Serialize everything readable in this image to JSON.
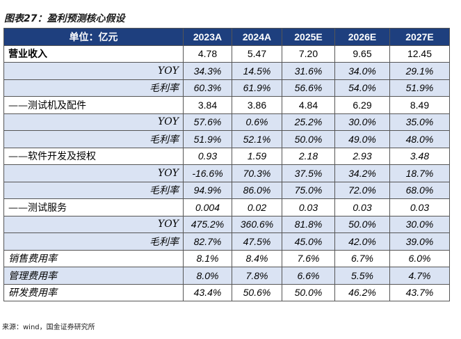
{
  "title": "图表27：盈利预测核心假设",
  "table": {
    "header": [
      "单位：亿元",
      "2023A",
      "2024A",
      "2025E",
      "2026E",
      "2027E"
    ],
    "rows": [
      [
        "营业收入",
        "4.78",
        "5.47",
        "7.20",
        "9.65",
        "12.45"
      ],
      [
        "YOY",
        "34.3%",
        "14.5%",
        "31.6%",
        "34.0%",
        "29.1%"
      ],
      [
        "毛利率",
        "60.3%",
        "61.9%",
        "56.6%",
        "54.0%",
        "51.9%"
      ],
      [
        "——测试机及配件",
        "3.84",
        "3.86",
        "4.84",
        "6.29",
        "8.49"
      ],
      [
        "YOY",
        "57.6%",
        "0.6%",
        "25.2%",
        "30.0%",
        "35.0%"
      ],
      [
        "毛利率",
        "51.9%",
        "52.1%",
        "50.0%",
        "49.0%",
        "48.0%"
      ],
      [
        "——软件开发及授权",
        "0.93",
        "1.59",
        "2.18",
        "2.93",
        "3.48"
      ],
      [
        "YOY",
        "-16.6%",
        "70.3%",
        "37.5%",
        "34.2%",
        "18.7%"
      ],
      [
        "毛利率",
        "94.9%",
        "86.0%",
        "75.0%",
        "72.0%",
        "68.0%"
      ],
      [
        "——测试服务",
        "0.004",
        "0.02",
        "0.03",
        "0.03",
        "0.03"
      ],
      [
        "YOY",
        "475.2%",
        "360.6%",
        "81.8%",
        "50.0%",
        "30.0%"
      ],
      [
        "毛利率",
        "82.7%",
        "47.5%",
        "45.0%",
        "42.0%",
        "39.0%"
      ],
      [
        "销售费用率",
        "8.1%",
        "8.4%",
        "7.6%",
        "6.7%",
        "6.0%"
      ],
      [
        "管理费用率",
        "8.0%",
        "7.8%",
        "6.6%",
        "5.5%",
        "4.7%"
      ],
      [
        "研发费用率",
        "43.4%",
        "50.6%",
        "50.0%",
        "46.2%",
        "43.7%"
      ]
    ]
  },
  "source": "来源：wind，国金证券研究所"
}
